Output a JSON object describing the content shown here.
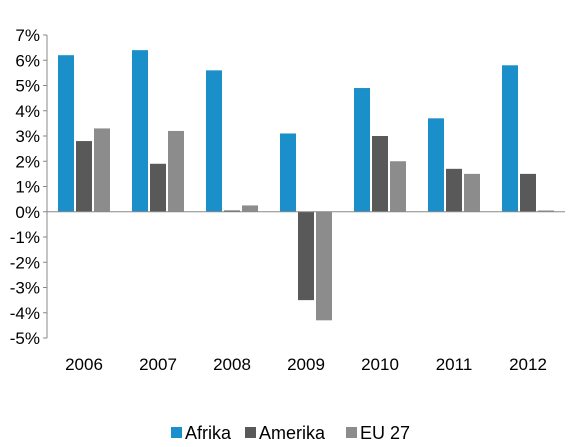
{
  "chart_data": {
    "type": "bar",
    "categories": [
      "2006",
      "2007",
      "2008",
      "2009",
      "2010",
      "2011",
      "2012"
    ],
    "series": [
      {
        "name": "Afrika",
        "color": "#1a8fc9",
        "values": [
          6.2,
          6.4,
          5.6,
          3.1,
          4.9,
          3.7,
          5.8
        ]
      },
      {
        "name": "Amerika",
        "color": "#595959",
        "values": [
          2.8,
          1.9,
          0.05,
          -3.5,
          3.0,
          1.7,
          1.5
        ]
      },
      {
        "name": "EU 27",
        "color": "#8c8c8c",
        "values": [
          3.3,
          3.2,
          0.25,
          -4.3,
          2.0,
          1.5,
          0.05
        ]
      }
    ],
    "y_ticks": [
      "7%",
      "6%",
      "5%",
      "4%",
      "3%",
      "2%",
      "1%",
      "0%",
      "-1%",
      "-2%",
      "-3%",
      "-4%",
      "-5%"
    ],
    "ylim": [
      -5,
      7
    ],
    "title": "",
    "xlabel": "",
    "ylabel": "",
    "grid": false,
    "legend_position": "bottom"
  }
}
